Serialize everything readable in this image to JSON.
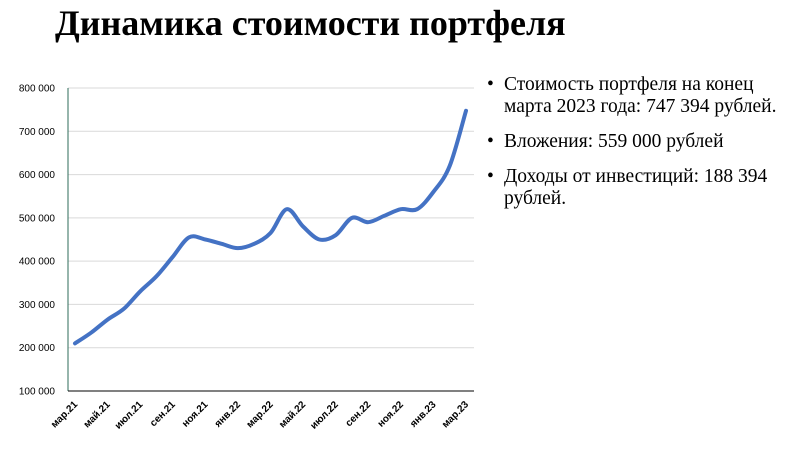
{
  "title": "Динамика стоимости портфеля",
  "bullets": [
    "Стоимость портфеля на конец марта 2023 года: 747 394 рублей.",
    "Вложения: 559 000 рублей",
    "Доходы от инвестиций: 188 394 рублей."
  ],
  "bullet_glyph": "•",
  "chart_data": {
    "type": "line",
    "title": "",
    "xlabel": "",
    "ylabel": "",
    "ylim": [
      100000,
      800000
    ],
    "yticks": [
      100000,
      200000,
      300000,
      400000,
      500000,
      600000,
      700000,
      800000
    ],
    "ytick_labels": [
      "100 000",
      "200 000",
      "300 000",
      "400 000",
      "500 000",
      "600 000",
      "700 000",
      "800 000"
    ],
    "grid": "horizontal",
    "line_color": "#4472C4",
    "months": [
      "мар.21",
      "апр.21",
      "май.21",
      "июн.21",
      "июл.21",
      "авг.21",
      "сен.21",
      "окт.21",
      "ноя.21",
      "дек.21",
      "янв.22",
      "фев.22",
      "мар.22",
      "апр.22",
      "май.22",
      "июн.22",
      "июл.22",
      "авг.22",
      "сен.22",
      "окт.22",
      "ноя.22",
      "дек.22",
      "янв.23",
      "фев.23",
      "мар.23"
    ],
    "xtick_labels": [
      "мар.21",
      "май.21",
      "июл.21",
      "сен.21",
      "ноя.21",
      "янв.22",
      "мар.22",
      "май.22",
      "июл.22",
      "сен.22",
      "ноя.22",
      "янв.23",
      "мар.23"
    ],
    "series": [
      {
        "values": [
          210000,
          235000,
          265000,
          290000,
          330000,
          365000,
          410000,
          455000,
          450000,
          440000,
          430000,
          440000,
          465000,
          520000,
          480000,
          450000,
          460000,
          500000,
          490000,
          505000,
          520000,
          520000,
          560000,
          620000,
          747394
        ]
      }
    ]
  }
}
